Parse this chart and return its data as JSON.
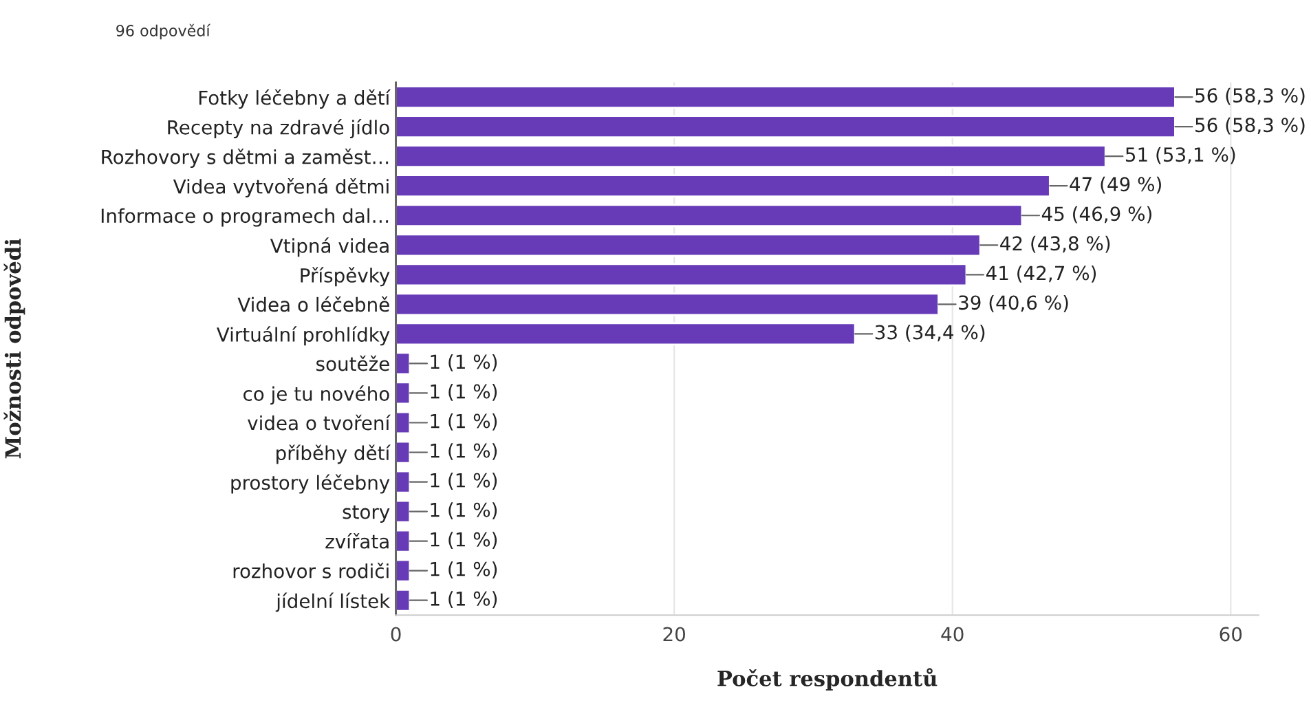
{
  "chart_data": {
    "type": "bar",
    "orientation": "horizontal",
    "subtitle": "96 odpovědí",
    "xlabel": "Počet respondentů",
    "ylabel": "Možnosti odpovědi",
    "categories": [
      "Fotky léčebny a dětí",
      "Recepty na zdravé jídlo",
      "Rozhovory s dětmi a zaměst…",
      "Videa vytvořená dětmi",
      "Informace o programech dal…",
      "Vtipná videa",
      "Příspěvky",
      "Videa o léčebně",
      "Virtuální prohlídky",
      "soutěže",
      "co je tu nového",
      "videa o tvoření",
      "příběhy dětí",
      "prostory léčebny",
      "story",
      "zvířata",
      "rozhovor s rodiči",
      "jídelní lístek"
    ],
    "values": [
      56,
      56,
      51,
      47,
      45,
      42,
      41,
      39,
      33,
      1,
      1,
      1,
      1,
      1,
      1,
      1,
      1,
      1
    ],
    "value_labels": [
      "56 (58,3 %)",
      "56 (58,3 %)",
      "51 (53,1 %)",
      "47 (49 %)",
      "45 (46,9 %)",
      "42 (43,8 %)",
      "41 (42,7 %)",
      "39 (40,6 %)",
      "33 (34,4 %)",
      "1 (1 %)",
      "1 (1 %)",
      "1 (1 %)",
      "1 (1 %)",
      "1 (1 %)",
      "1 (1 %)",
      "1 (1 %)",
      "1 (1 %)",
      "1 (1 %)"
    ],
    "color": "#673ab7",
    "xlim": [
      0,
      62
    ],
    "xticks": [
      0,
      20,
      40,
      60
    ],
    "grid": "x",
    "legend": false
  }
}
